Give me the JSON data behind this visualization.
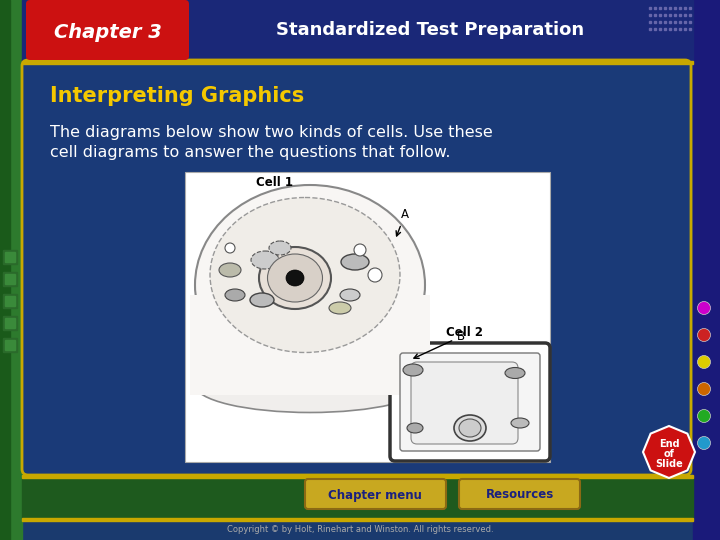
{
  "title_chapter": "Chapter 3",
  "title_section": "Standardized Test Preparation",
  "section_header": "Interpreting Graphics",
  "body_text_line1": "The diagrams below show two kinds of cells. Use these",
  "body_text_line2": "cell diagrams to answer the questions that follow.",
  "footer_left": "Chapter menu",
  "footer_right": "Resources",
  "copyright": "Copyright © by Holt, Rinehart and Winston. All rights reserved.",
  "bg_main": "#1a3a6e",
  "bg_left_border": "#2d7a2d",
  "bg_right_border": "#1a1a7a",
  "header_bg": "#1e2e8a",
  "chapter_box_bg": "#cc1111",
  "chapter_text_color": "#ffffff",
  "section_text_color": "#ffffff",
  "interpreting_color": "#f5c800",
  "body_text_color": "#ffffff",
  "border_color": "#c8a800",
  "footer_bg": "#1e5a1e",
  "footer_btn_bg": "#c8a820",
  "footer_btn_text": "#1a2080",
  "end_slide_bg": "#cc1111",
  "end_slide_text": "#ffffff",
  "dots_colors": [
    "#cc00cc",
    "#cc2222",
    "#ddcc00",
    "#cc6600",
    "#22aa22",
    "#2299cc"
  ]
}
